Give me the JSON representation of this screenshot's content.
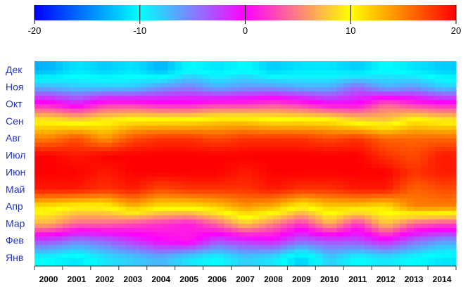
{
  "chart_data": {
    "type": "heatmap",
    "title": "",
    "xlabel": "",
    "ylabel": "",
    "colorbar": {
      "min": -20,
      "max": 20,
      "tick_values": [
        -20,
        -10,
        0,
        10,
        20
      ],
      "tick_labels": [
        "-20",
        "-10",
        "0",
        "10",
        "20"
      ],
      "stops": [
        {
          "value": -20,
          "color": "#0000ff"
        },
        {
          "value": -15,
          "color": "#0080ff"
        },
        {
          "value": -10,
          "color": "#00ffff"
        },
        {
          "value": -5,
          "color": "#8080ff"
        },
        {
          "value": 0,
          "color": "#ff00ff"
        },
        {
          "value": 5,
          "color": "#ff8080"
        },
        {
          "value": 10,
          "color": "#ffff00"
        },
        {
          "value": 15,
          "color": "#ff8000"
        },
        {
          "value": 20,
          "color": "#ff0000"
        }
      ]
    },
    "x_labels": [
      "2000",
      "2001",
      "2002",
      "2003",
      "2004",
      "2005",
      "2006",
      "2007",
      "2008",
      "2009",
      "2010",
      "2011",
      "2012",
      "2013",
      "2014"
    ],
    "y_labels": [
      "Янв",
      "Фев",
      "Мар",
      "Апр",
      "Май",
      "Июн",
      "Июл",
      "Авг",
      "Сен",
      "Окт",
      "Ноя",
      "Дек"
    ],
    "values": [
      [
        -10,
        -11,
        -9,
        -8,
        -7,
        -9,
        -10,
        -8,
        -9,
        -12,
        -8,
        -10,
        -9,
        -10,
        -11
      ],
      [
        -3,
        -5,
        -4,
        -2,
        0,
        1,
        -3,
        -2,
        -1,
        -4,
        -3,
        -3,
        -1,
        -4,
        -6
      ],
      [
        7,
        4,
        4,
        3,
        2,
        1,
        4,
        8,
        5,
        2,
        7,
        2,
        8,
        4,
        3
      ],
      [
        11,
        10,
        10,
        13,
        11,
        11,
        12,
        14,
        13,
        10,
        12,
        12,
        11,
        15,
        15
      ],
      [
        19,
        19,
        18,
        19,
        17,
        18,
        18,
        18,
        19,
        18,
        18,
        19,
        19,
        16,
        17
      ],
      [
        20,
        20,
        19,
        20,
        20,
        20,
        20,
        19,
        20,
        20,
        20,
        20,
        20,
        18,
        19
      ],
      [
        20,
        19,
        20,
        20,
        20,
        20,
        20,
        20,
        20,
        20,
        20,
        20,
        18,
        17,
        19
      ],
      [
        15,
        17,
        14,
        17,
        18,
        18,
        17,
        18,
        18,
        18,
        17,
        18,
        16,
        16,
        16
      ],
      [
        10,
        9,
        10,
        11,
        11,
        11,
        12,
        12,
        11,
        11,
        11,
        9,
        8,
        11,
        10
      ],
      [
        1,
        -1,
        2,
        2,
        1,
        1,
        2,
        2,
        3,
        2,
        0,
        0,
        4,
        2,
        1
      ],
      [
        -7,
        -8,
        -8,
        -8,
        -6,
        -5,
        -7,
        -6,
        -6,
        -7,
        -7,
        -4,
        -7,
        -6,
        -8
      ],
      [
        -13,
        -11,
        -12,
        -11,
        -13,
        -10,
        -11,
        -10,
        -12,
        -11,
        -11,
        -12,
        -10,
        -11,
        -12
      ]
    ]
  }
}
